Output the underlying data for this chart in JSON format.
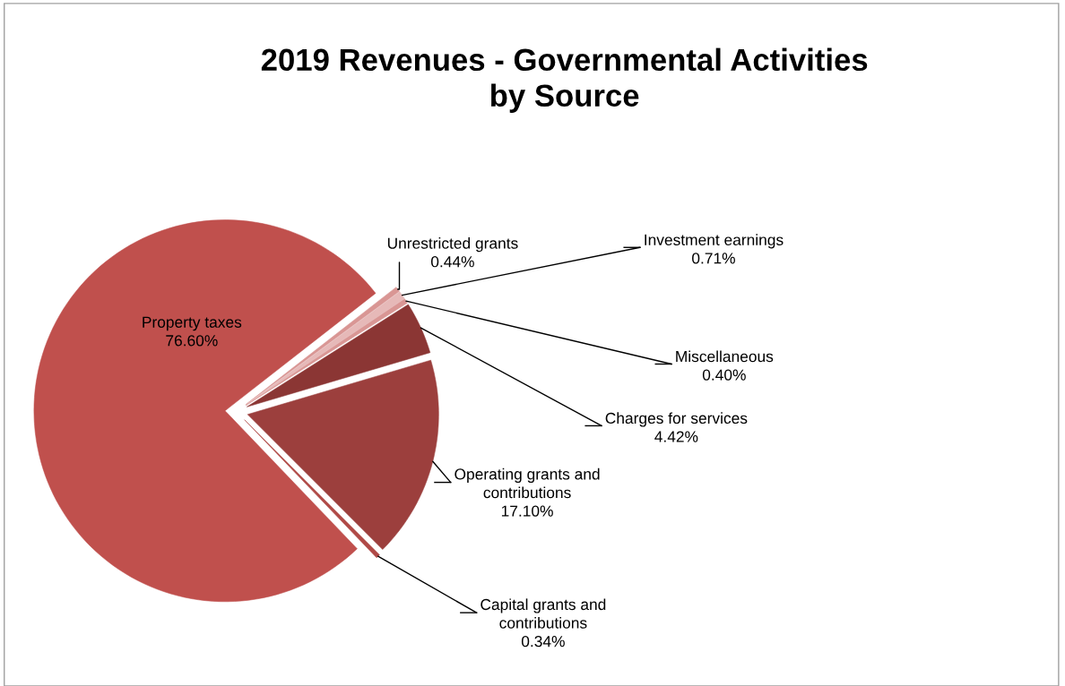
{
  "chart_data": {
    "type": "pie",
    "title": "2019 Revenues - Governmental Activities\nby Source",
    "categories": [
      "Unrestricted grants",
      "Investment earnings",
      "Miscellaneous",
      "Charges for services",
      "Operating grants and\ncontributions",
      "Capital grants and\ncontributions",
      "Property taxes"
    ],
    "values": [
      0.44,
      0.71,
      0.4,
      4.42,
      17.1,
      0.34,
      76.6
    ],
    "value_labels": [
      "0.44%",
      "0.71%",
      "0.40%",
      "4.42%",
      "17.10%",
      "0.34%",
      "76.60%"
    ],
    "colors": [
      "#d99694",
      "#e6b9b8",
      "#d99694",
      "#8b3634",
      "#9c3f3d",
      "#b04a47",
      "#c0504d"
    ],
    "legend": false
  }
}
